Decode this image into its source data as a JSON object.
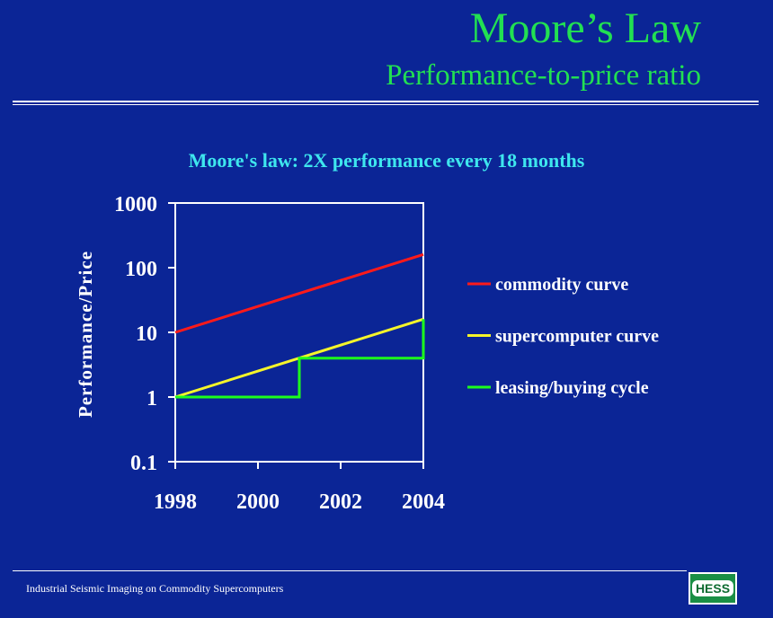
{
  "slide": {
    "title": "Moore’s Law",
    "subtitle": "Performance-to-price ratio",
    "footer": "Industrial Seismic Imaging on Commodity Supercomputers",
    "logo_text": "HESS"
  },
  "colors": {
    "background": "#0b2596",
    "title": "#22e052",
    "chart_title": "#3ee6ee",
    "axis": "#ffffff",
    "commodity": "#ff1a1a",
    "supercomputer": "#f5f52a",
    "leasing": "#1cff1c"
  },
  "chart_data": {
    "type": "line",
    "title": "Moore's law: 2X performance every 18 months",
    "ylabel": "Performance/Price",
    "xlabel": "",
    "x_scale": "linear",
    "y_scale": "log",
    "xlim": [
      1998,
      2004
    ],
    "ylim": [
      0.1,
      1000
    ],
    "x_ticks": [
      1998,
      2000,
      2002,
      2004
    ],
    "x_tick_labels": [
      "1998",
      "2000",
      "2002",
      "2004"
    ],
    "y_ticks": [
      0.1,
      1,
      10,
      100,
      1000
    ],
    "y_tick_labels": [
      "0.1",
      "1",
      "10",
      "100",
      "1000"
    ],
    "grid": false,
    "legend_position": "right",
    "series": [
      {
        "name": "commodity curve",
        "color": "#ff1a1a",
        "step": false,
        "points": [
          [
            1998,
            10
          ],
          [
            2004,
            160
          ]
        ]
      },
      {
        "name": "supercomputer curve",
        "color": "#f5f52a",
        "step": false,
        "points": [
          [
            1998,
            1
          ],
          [
            2004,
            16
          ]
        ]
      },
      {
        "name": "leasing/buying cycle",
        "color": "#1cff1c",
        "step": true,
        "points": [
          [
            1998,
            1
          ],
          [
            2001,
            1
          ],
          [
            2001,
            4
          ],
          [
            2004,
            4
          ],
          [
            2004,
            16
          ]
        ]
      }
    ]
  }
}
